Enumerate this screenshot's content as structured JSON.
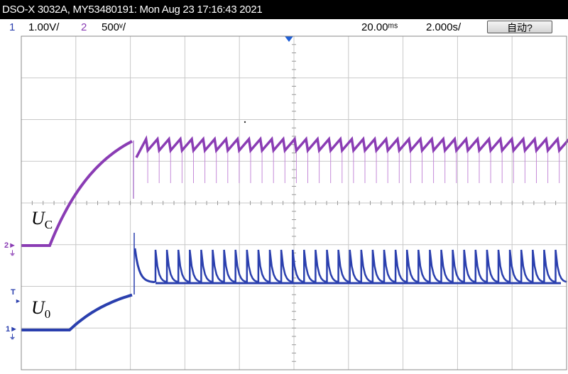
{
  "title_bar": {
    "text": "DSO-X 3032A, MY53480191: Mon Aug 23 17:16:43 2021"
  },
  "status_bar": {
    "ch1_number": "1",
    "ch1_scale": "1.00V/",
    "ch2_number": "2",
    "ch2_scale": "500ᵛ/",
    "time_delay": "20.00ᵐˢ",
    "time_scale": "2.000s/",
    "auto_button": "自动?"
  },
  "markers": {
    "ch2_ground": "2",
    "ch1_ground": "1",
    "trigger": "T"
  },
  "waveform_labels": {
    "uc_main": "U",
    "uc_sub": "C",
    "u0_main": "U",
    "u0_sub": "0"
  },
  "colors": {
    "ch1": "#2a3fae",
    "ch2": "#8a3cb4",
    "grid": "#c8c8c8",
    "trigger_marker": "#1f5fd6"
  }
}
